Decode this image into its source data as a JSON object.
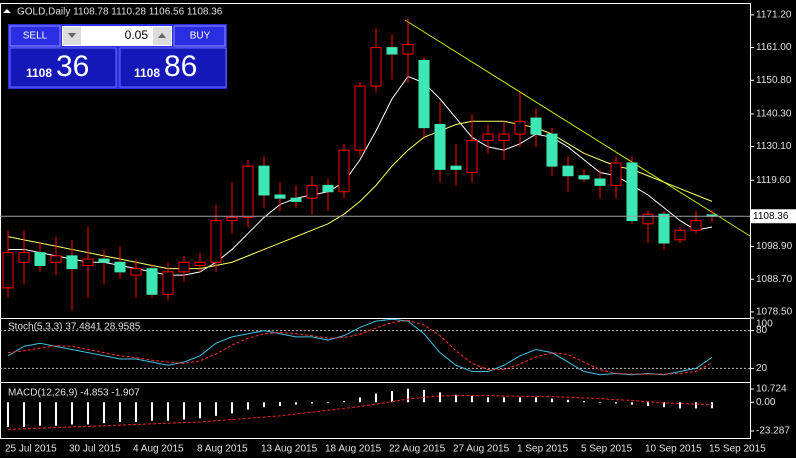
{
  "chart_data": [
    {
      "type": "candlestick",
      "title": "GOLD,Daily 1108.78 1110.28 1106.56 1108.36",
      "categories": [
        "25 Jul 2015",
        null,
        null,
        null,
        "30 Jul 2015",
        null,
        null,
        null,
        "4 Aug 2015",
        null,
        null,
        null,
        "8 Aug 2015",
        null,
        null,
        null,
        "13 Aug 2015",
        null,
        null,
        null,
        "18 Aug 2015",
        null,
        null,
        null,
        "22 Aug 2015",
        null,
        null,
        null,
        "27 Aug 2015",
        null,
        null,
        null,
        "1 Sep 2015",
        null,
        null,
        null,
        "5 Sep 2015",
        null,
        null,
        null,
        "10 Sep 2015",
        null,
        null,
        null,
        "15 Sep 2015"
      ],
      "open": [
        1086,
        1094,
        1097,
        1094,
        1096,
        1093,
        1095,
        1094,
        1090,
        1092,
        1084,
        1091,
        1093,
        1094,
        1107,
        1108,
        1124,
        1115,
        1114,
        1114,
        1118,
        1116,
        1129,
        1149,
        1161,
        1159,
        1157,
        1137,
        1124,
        1122,
        1132,
        1132,
        1134,
        1139,
        1134,
        1124,
        1121,
        1120,
        1118,
        1125,
        1106,
        1109,
        1101,
        1104,
        1108.78
      ],
      "high": [
        1104,
        1104,
        1100,
        1102,
        1101,
        1105,
        1098,
        1099,
        1095,
        1093,
        1094,
        1096,
        1097,
        1112,
        1119,
        1126,
        1127,
        1119,
        1118,
        1121,
        1120,
        1131,
        1150,
        1167,
        1165,
        1170,
        1158,
        1144,
        1131,
        1140,
        1137,
        1138,
        1147,
        1142,
        1136,
        1127,
        1123,
        1123,
        1127,
        1127,
        1110,
        1110,
        1105,
        1110,
        1110.28
      ],
      "low": [
        1083,
        1087,
        1091,
        1090,
        1079,
        1083,
        1087,
        1089,
        1083,
        1083,
        1082,
        1088,
        1091,
        1091,
        1103,
        1105,
        1111,
        1110,
        1111,
        1109,
        1110,
        1114,
        1127,
        1147,
        1151,
        1150,
        1133,
        1119,
        1118,
        1119,
        1128,
        1126,
        1130,
        1130,
        1121,
        1116,
        1119,
        1114,
        1114,
        1106,
        1100,
        1098,
        1100,
        1103,
        1106.56
      ],
      "close": [
        1097,
        1097,
        1093,
        1096,
        1092,
        1095,
        1094,
        1091,
        1092,
        1084,
        1091,
        1094,
        1094,
        1107,
        1108,
        1124,
        1115,
        1114,
        1113,
        1118,
        1116,
        1129,
        1149,
        1161,
        1159,
        1162,
        1136,
        1123,
        1123,
        1132,
        1134,
        1134,
        1138,
        1134,
        1124,
        1121,
        1120,
        1118,
        1125,
        1107,
        1109,
        1100,
        1104,
        1107,
        1108.36
      ],
      "up_color": "#ff0000",
      "down_color": "#3ee8b4",
      "overlays": [
        {
          "color": "#ffffff",
          "values": [
            1098,
            1098,
            1097,
            1096,
            1095,
            1094,
            1094,
            1093,
            1092,
            1091,
            1090,
            1090,
            1091,
            1094,
            1098,
            1103,
            1108,
            1112,
            1114,
            1115,
            1116,
            1119,
            1126,
            1135,
            1145,
            1152,
            1150,
            1145,
            1139,
            1133,
            1130,
            1129,
            1131,
            1134,
            1133,
            1130,
            1126,
            1122,
            1121,
            1118,
            1115,
            1111,
            1107,
            1104,
            1105
          ]
        },
        {
          "color": "#ffff66",
          "values": [
            1102,
            1101,
            1100,
            1099,
            1098,
            1097,
            1096,
            1095,
            1094,
            1093,
            1092,
            1092,
            1092,
            1093,
            1094,
            1096,
            1098,
            1100,
            1102,
            1104,
            1106,
            1109,
            1113,
            1118,
            1124,
            1129,
            1133,
            1135,
            1137,
            1138,
            1138,
            1138,
            1137,
            1136,
            1134,
            1131,
            1128,
            1126,
            1124,
            1123,
            1121,
            1119,
            1117,
            1115,
            1113
          ]
        }
      ],
      "last_price": {
        "value": 1108.36,
        "label": "1108.36"
      },
      "ylim": [
        1076.6,
        1174.3
      ],
      "yticks": [
        {
          "value": 1171.2,
          "label": "1171.20"
        },
        {
          "value": 1161.0,
          "label": "1161.00"
        },
        {
          "value": 1150.8,
          "label": "1150.80"
        },
        {
          "value": 1140.3,
          "label": "1140.30"
        },
        {
          "value": 1130.1,
          "label": "1130.10"
        },
        {
          "value": 1119.6,
          "label": "1119.60"
        },
        {
          "value": 1098.9,
          "label": "1098.90"
        },
        {
          "value": 1088.7,
          "label": "1088.70"
        },
        {
          "value": 1078.5,
          "label": "1078.50"
        }
      ]
    },
    {
      "type": "line",
      "title": "Stoch(5,3,3) 37.4841 28.9585",
      "series": [
        {
          "color": "#40c0e0",
          "dash": false,
          "values": [
            40,
            55,
            60,
            55,
            50,
            45,
            40,
            35,
            35,
            30,
            25,
            30,
            40,
            60,
            70,
            75,
            80,
            75,
            70,
            70,
            65,
            72,
            85,
            95,
            98,
            95,
            75,
            45,
            25,
            15,
            15,
            25,
            40,
            50,
            45,
            30,
            15,
            10,
            12,
            10,
            12,
            10,
            15,
            20,
            37.4841
          ]
        },
        {
          "color": "#ff3030",
          "dash": true,
          "values": [
            45,
            48,
            52,
            56,
            55,
            50,
            45,
            40,
            37,
            33,
            30,
            28,
            32,
            43,
            57,
            68,
            75,
            77,
            75,
            72,
            68,
            69,
            74,
            84,
            93,
            96,
            89,
            72,
            48,
            28,
            18,
            18,
            27,
            38,
            45,
            42,
            30,
            18,
            12,
            11,
            11,
            11,
            12,
            15,
            28.9585
          ]
        }
      ],
      "levels": [
        80,
        20
      ],
      "ylim": [
        0,
        100
      ],
      "yticks": [
        100,
        80,
        20
      ]
    },
    {
      "type": "macd",
      "title": "MACD(12,26,9) -4.853 -1.907",
      "series": [
        {
          "color": "#ffffff",
          "style": "bar",
          "values": [
            -20,
            -20,
            -19,
            -19,
            -18,
            -18,
            -17,
            -16,
            -16,
            -15,
            -15,
            -14,
            -13,
            -11,
            -9,
            -6,
            -4,
            -3,
            -2,
            -1,
            -0.5,
            1,
            4,
            7,
            9,
            11,
            10,
            8,
            6,
            5,
            4,
            4,
            4,
            4,
            3,
            2,
            1,
            0,
            -1,
            -2,
            -3,
            -4,
            -5,
            -5,
            -4.853
          ]
        },
        {
          "color": "#ff2020",
          "style": "line",
          "values": [
            -22,
            -21.5,
            -21,
            -20.5,
            -20,
            -19.5,
            -19,
            -18.5,
            -18,
            -17.5,
            -17,
            -16.5,
            -16,
            -15,
            -14,
            -13,
            -12,
            -11,
            -9.5,
            -8,
            -6.5,
            -5,
            -3.5,
            -1.5,
            0.5,
            2.5,
            4,
            5,
            5.5,
            5.5,
            5.5,
            5,
            5,
            4.5,
            4.5,
            4,
            3.5,
            3,
            2,
            1.5,
            0.5,
            -0.5,
            -1,
            -1.5,
            -1.907
          ]
        }
      ],
      "ylim": [
        -30.57,
        15.58
      ],
      "yticks": [
        10.724,
        {
          "value": 0,
          "label": "0.00"
        },
        -23.287
      ]
    }
  ],
  "trade_panel": {
    "sell": "SELL",
    "buy": "BUY",
    "lot": "0.05",
    "bid_small": "1108",
    "bid_big": "36",
    "ask_small": "1108",
    "ask_big": "86"
  }
}
